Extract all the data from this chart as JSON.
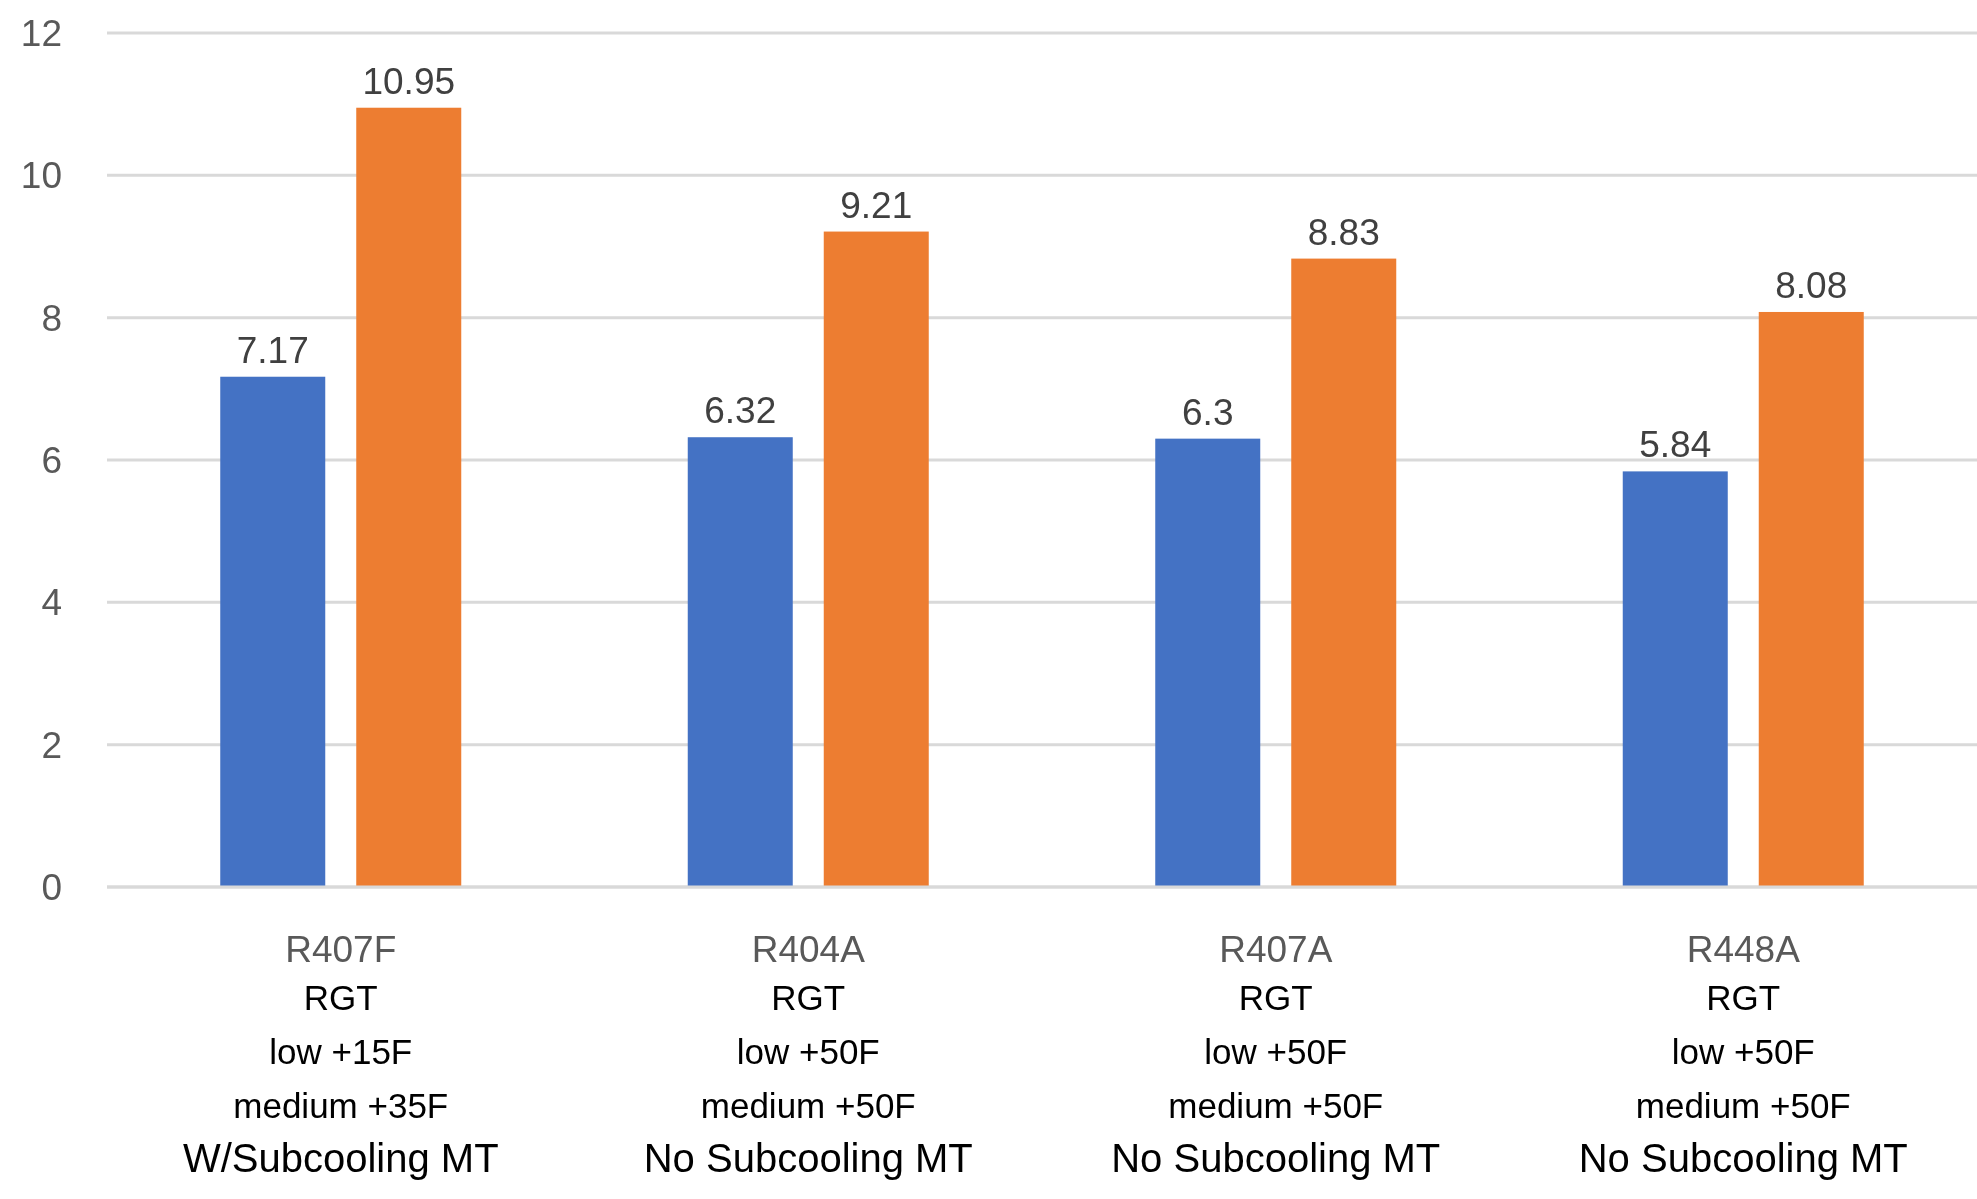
{
  "chart_data": {
    "type": "bar",
    "categories": [
      "R407F",
      "R404A",
      "R407A",
      "R448A"
    ],
    "series": [
      {
        "color": "#4472c4",
        "values": [
          7.17,
          6.32,
          6.3,
          5.84
        ]
      },
      {
        "color": "#ed7d31",
        "values": [
          10.95,
          9.21,
          8.83,
          8.08
        ]
      }
    ],
    "ylim": [
      0,
      12
    ],
    "yticks": [
      0,
      2,
      4,
      6,
      8,
      10,
      12
    ],
    "grid": "y",
    "data_labels": true,
    "annotations": [
      "RGT\nlow +15F\nmedium +35F\nW/Subcooling MT",
      "RGT\nlow +50F\nmedium +50F\nNo Subcooling MT",
      "RGT\nlow +50F\nmedium +50F\nNo Subcooling MT",
      "RGT\nlow +50F\nmedium +50F\nNo Subcooling MT"
    ]
  }
}
